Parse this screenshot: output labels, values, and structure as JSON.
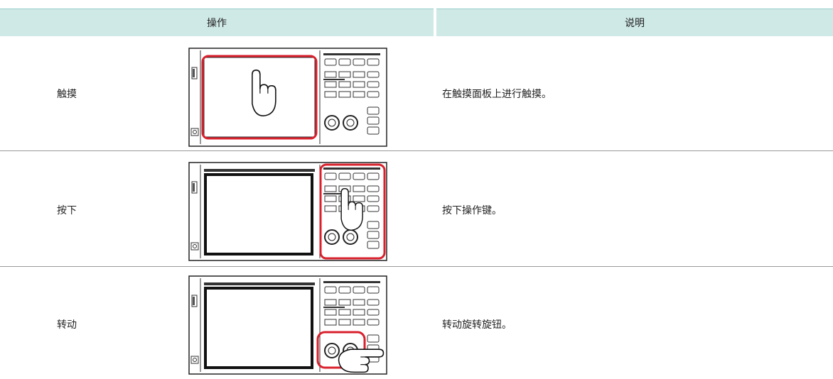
{
  "header": {
    "columns": [
      "操作",
      "说明"
    ]
  },
  "table": {
    "rows": [
      {
        "operation": "触摸",
        "description": "在触摸面板上进行触摸。"
      },
      {
        "operation": "按下",
        "description": "按下操作键。"
      },
      {
        "operation": "转动",
        "description": "转动旋转旋钮。"
      }
    ]
  }
}
